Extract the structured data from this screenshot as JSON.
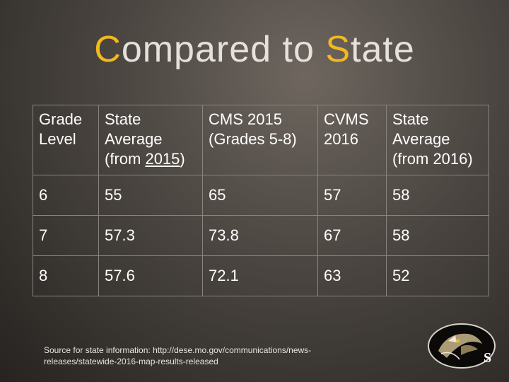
{
  "title": {
    "first_letter": "C",
    "rest_first_word": "ompared to ",
    "second_letter": "S",
    "rest_second_word": "tate"
  },
  "table": {
    "headers": [
      [
        "Grade",
        "Level"
      ],
      [
        "State",
        "Average",
        "(from ",
        "2015",
        ")"
      ],
      [
        "CMS 2015",
        "(Grades 5-8)"
      ],
      [
        "CVMS",
        "2016"
      ],
      [
        "State",
        "Average",
        "(from 2016)"
      ]
    ],
    "rows": [
      [
        "6",
        "55",
        "65",
        "57",
        "58"
      ],
      [
        "7",
        "57.3",
        "73.8",
        "67",
        "58"
      ],
      [
        "8",
        "57.6",
        "72.1",
        "63",
        "52"
      ]
    ]
  },
  "source": {
    "line1": "Source for state information: http://dese.mo.gov/communications/news-",
    "line2": "releases/statewide-2016-map-results-released"
  },
  "logo": {
    "letter": "S",
    "icon": "wildcat-mascot-logo"
  },
  "colors": {
    "accent": "#f2b81f",
    "text": "#ffffff",
    "grid": "#8a847e"
  }
}
